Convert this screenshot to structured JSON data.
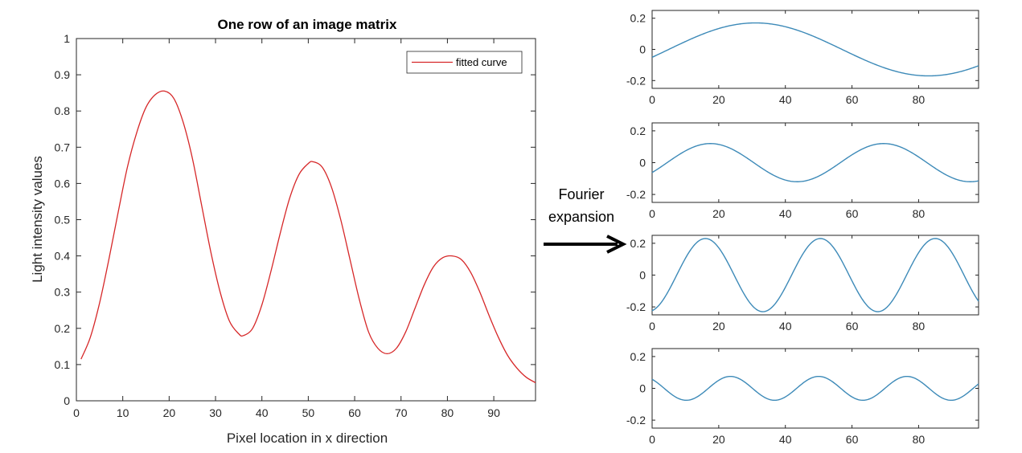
{
  "chart_data": [
    {
      "type": "line",
      "title": "One row of an image matrix",
      "xlabel": "Pixel location in x direction",
      "ylabel": "Light intensity values",
      "xlim": [
        0,
        99
      ],
      "ylim": [
        0,
        1
      ],
      "xticks": [
        0,
        10,
        20,
        30,
        40,
        50,
        60,
        70,
        80,
        90
      ],
      "yticks": [
        0,
        0.1,
        0.2,
        0.3,
        0.4,
        0.5,
        0.6,
        0.7,
        0.8,
        0.9,
        1
      ],
      "ytick_labels": [
        "0",
        "0.1",
        "0.2",
        "0.3",
        "0.4",
        "0.5",
        "0.6",
        "0.7",
        "0.8",
        "0.9",
        "1"
      ],
      "legend": {
        "position": "top-right",
        "entries": [
          "fitted curve"
        ]
      },
      "series": [
        {
          "name": "fitted curve",
          "color": "#d62728",
          "x": [
            1,
            3,
            5,
            7,
            9,
            11,
            13,
            15,
            17,
            19,
            21,
            23,
            25,
            27,
            29,
            31,
            33,
            35,
            36,
            38,
            40,
            42,
            44,
            46,
            48,
            50,
            51,
            53,
            55,
            57,
            59,
            61,
            63,
            65,
            67,
            69,
            71,
            73,
            75,
            77,
            79,
            81,
            83,
            85,
            87,
            89,
            91,
            93,
            95,
            97,
            99
          ],
          "y": [
            0.115,
            0.175,
            0.27,
            0.39,
            0.52,
            0.645,
            0.74,
            0.81,
            0.845,
            0.855,
            0.835,
            0.77,
            0.67,
            0.54,
            0.41,
            0.3,
            0.22,
            0.185,
            0.18,
            0.2,
            0.265,
            0.36,
            0.465,
            0.56,
            0.625,
            0.655,
            0.66,
            0.645,
            0.59,
            0.5,
            0.39,
            0.28,
            0.19,
            0.145,
            0.13,
            0.145,
            0.19,
            0.255,
            0.32,
            0.37,
            0.395,
            0.4,
            0.39,
            0.355,
            0.3,
            0.235,
            0.175,
            0.125,
            0.09,
            0.065,
            0.05
          ]
        }
      ]
    },
    {
      "type": "line",
      "xlim": [
        0,
        98
      ],
      "ylim": [
        -0.25,
        0.25
      ],
      "xticks": [
        0,
        20,
        40,
        60,
        80
      ],
      "yticks": [
        -0.2,
        0,
        0.2
      ],
      "ytick_labels": [
        "-0.2",
        "0",
        "0.2"
      ],
      "series": [
        {
          "color": "#3d8ab8",
          "amplitude": 0.17,
          "period": 104,
          "peak_at": 31
        }
      ]
    },
    {
      "type": "line",
      "xlim": [
        0,
        98
      ],
      "ylim": [
        -0.25,
        0.25
      ],
      "xticks": [
        0,
        20,
        40,
        60,
        80
      ],
      "yticks": [
        -0.2,
        0,
        0.2
      ],
      "ytick_labels": [
        "-0.2",
        "0",
        "0.2"
      ],
      "series": [
        {
          "color": "#3d8ab8",
          "amplitude": 0.12,
          "period": 52,
          "peak_at": 17.5
        }
      ]
    },
    {
      "type": "line",
      "xlim": [
        0,
        98
      ],
      "ylim": [
        -0.25,
        0.25
      ],
      "xticks": [
        0,
        20,
        40,
        60,
        80
      ],
      "yticks": [
        -0.2,
        0,
        0.2
      ],
      "ytick_labels": [
        "-0.2",
        "0",
        "0.2"
      ],
      "series": [
        {
          "color": "#3d8ab8",
          "amplitude": 0.23,
          "period": 34.5,
          "peak_at": 16
        }
      ]
    },
    {
      "type": "line",
      "xlim": [
        0,
        98
      ],
      "ylim": [
        -0.25,
        0.25
      ],
      "xticks": [
        0,
        20,
        40,
        60,
        80
      ],
      "yticks": [
        -0.2,
        0,
        0.2
      ],
      "ytick_labels": [
        "-0.2",
        "0",
        "0.2"
      ],
      "series": [
        {
          "color": "#3d8ab8",
          "amplitude": 0.075,
          "period": 26.5,
          "peak_at": 23.5
        }
      ]
    }
  ],
  "annotation": {
    "line1": "Fourier",
    "line2": "expansion",
    "arrow_icon": "right-arrow-icon"
  }
}
